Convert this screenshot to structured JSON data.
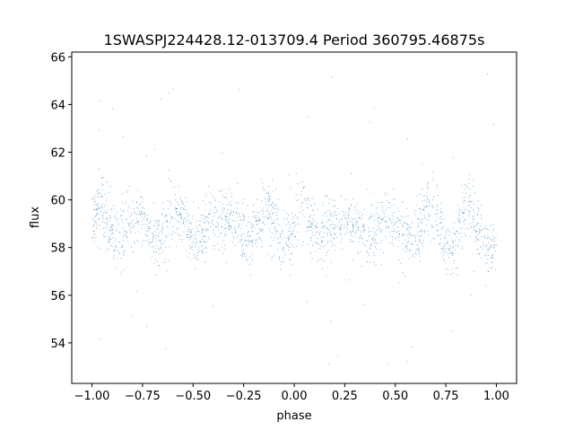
{
  "chart_data": {
    "type": "scatter",
    "title": "1SWASPJ224428.12-013709.4 Period 360795.46875s",
    "xlabel": "phase",
    "ylabel": "flux",
    "xlim": [
      -1.1,
      1.1
    ],
    "ylim": [
      52.3,
      66.2
    ],
    "x_ticks": [
      -1.0,
      -0.75,
      -0.5,
      -0.25,
      0.0,
      0.25,
      0.5,
      0.75,
      1.0
    ],
    "x_tick_labels": [
      "−1.00",
      "−0.75",
      "−0.50",
      "−0.25",
      "0.00",
      "0.25",
      "0.50",
      "0.75",
      "1.00"
    ],
    "y_ticks": [
      54,
      56,
      58,
      60,
      62,
      64,
      66
    ],
    "y_tick_labels": [
      "54",
      "56",
      "58",
      "60",
      "62",
      "64",
      "66"
    ],
    "grid": false,
    "legend": "none",
    "marker_color": "#1f77b4",
    "series": [
      {
        "x_range": [
          -1.0,
          1.0
        ],
        "median_flux": 59.2,
        "core_band": [
          56.5,
          62.5
        ],
        "outlier_range": [
          53.0,
          65.5
        ],
        "approx_point_count": 20000
      }
    ]
  }
}
